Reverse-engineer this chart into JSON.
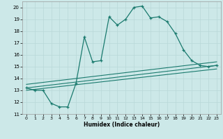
{
  "xlabel": "Humidex (Indice chaleur)",
  "xlim": [
    -0.5,
    23.5
  ],
  "ylim": [
    11,
    20.5
  ],
  "yticks": [
    11,
    12,
    13,
    14,
    15,
    16,
    17,
    18,
    19,
    20
  ],
  "xticks": [
    0,
    1,
    2,
    3,
    4,
    5,
    6,
    7,
    8,
    9,
    10,
    11,
    12,
    13,
    14,
    15,
    16,
    17,
    18,
    19,
    20,
    21,
    22,
    23
  ],
  "bg_color": "#cce8e8",
  "line_color": "#1a7a6e",
  "grid_color": "#b8d8d8",
  "series_main": [
    [
      0,
      13.2
    ],
    [
      1,
      13.0
    ],
    [
      2,
      13.0
    ],
    [
      3,
      11.9
    ],
    [
      4,
      11.6
    ],
    [
      5,
      11.6
    ],
    [
      6,
      13.6
    ],
    [
      7,
      17.5
    ],
    [
      8,
      15.4
    ],
    [
      9,
      15.5
    ],
    [
      10,
      19.2
    ],
    [
      11,
      18.5
    ],
    [
      12,
      19.0
    ],
    [
      13,
      20.0
    ],
    [
      14,
      20.1
    ],
    [
      15,
      19.1
    ],
    [
      16,
      19.2
    ],
    [
      17,
      18.8
    ],
    [
      18,
      17.8
    ],
    [
      19,
      16.4
    ],
    [
      20,
      15.5
    ],
    [
      21,
      15.1
    ],
    [
      22,
      15.0
    ],
    [
      23,
      15.1
    ]
  ],
  "flat_lines": [
    [
      [
        0,
        23
      ],
      [
        13.2,
        15.1
      ]
    ],
    [
      [
        0,
        23
      ],
      [
        13.5,
        15.4
      ]
    ],
    [
      [
        0,
        23
      ],
      [
        13.0,
        14.8
      ]
    ]
  ]
}
